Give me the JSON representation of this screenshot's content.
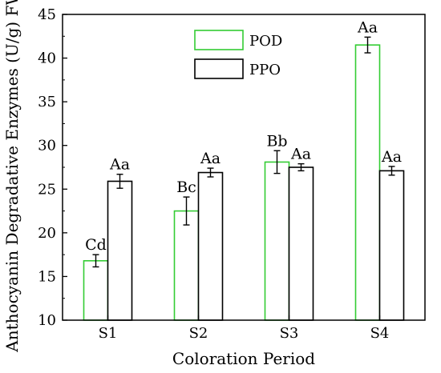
{
  "chart_data": {
    "type": "bar",
    "title": "",
    "xlabel": "Coloration Period",
    "ylabel": "Anthocyanin Degradative Enzymes (U/g) FW)",
    "categories": [
      "S1",
      "S2",
      "S3",
      "S4"
    ],
    "ylim": [
      10,
      45
    ],
    "yticks": [
      10,
      15,
      20,
      25,
      30,
      35,
      40,
      45
    ],
    "legend_position": "top-center",
    "grid": false,
    "series": [
      {
        "name": "POD",
        "color": "#33cc33",
        "values": [
          16.8,
          22.5,
          28.1,
          41.5
        ],
        "errors": [
          0.7,
          1.6,
          1.3,
          0.9
        ],
        "labels": [
          "Cd",
          "Bc",
          "Bb",
          "Aa"
        ]
      },
      {
        "name": "PPO",
        "color": "#000000",
        "values": [
          25.9,
          26.9,
          27.5,
          27.1
        ],
        "errors": [
          0.8,
          0.5,
          0.4,
          0.5
        ],
        "labels": [
          "Aa",
          "Aa",
          "Aa",
          "Aa"
        ]
      }
    ]
  }
}
